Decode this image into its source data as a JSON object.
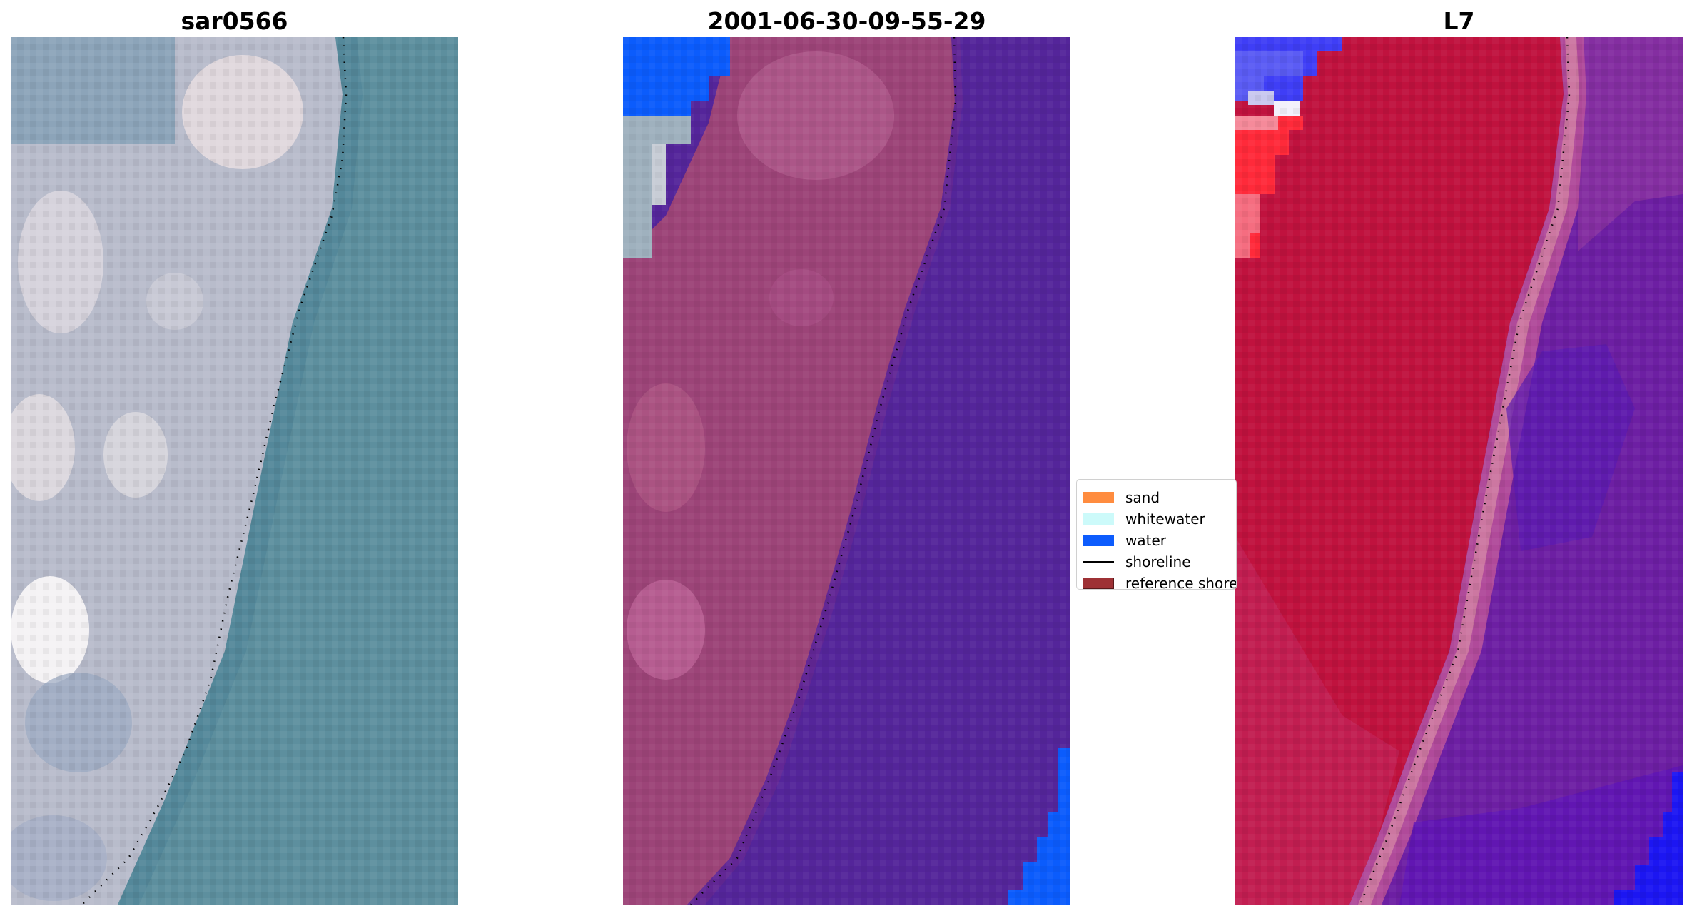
{
  "panels": [
    {
      "title": "sar0566"
    },
    {
      "title": "2001-06-30-09-55-29"
    },
    {
      "title": "L7"
    }
  ],
  "legend": {
    "items": [
      {
        "label": "sand",
        "kind": "patch",
        "color": "#ff8c3f"
      },
      {
        "label": "whitewater",
        "kind": "patch",
        "color": "#ccfafa"
      },
      {
        "label": "water",
        "kind": "patch",
        "color": "#0d5cfd"
      },
      {
        "label": "shoreline",
        "kind": "line",
        "color": "#000000"
      },
      {
        "label": "reference shoreline",
        "kind": "patch",
        "color": "#9e3135"
      }
    ]
  },
  "colors": {
    "rgb_water": "#5d8f9e",
    "rgb_sand": "#b8bccb",
    "class_sand": "#9c4478",
    "class_water_overlay": "#54259a",
    "class_water": "#0b5cfc",
    "index_land": "#c0123e",
    "index_water": "#6d1fa3"
  }
}
